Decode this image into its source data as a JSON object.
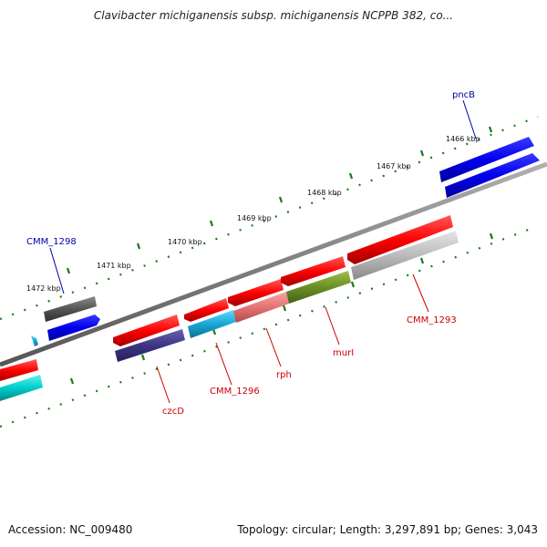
{
  "title": "Clavibacter michiganensis subsp. michiganensis NCPPB 382, co...",
  "footer": {
    "accession": "Accession: NC_009480",
    "topology": "Topology: circular; Length: 3,297,891 bp; Genes: 3,043"
  },
  "ticks": [
    {
      "label": "1466 kbp"
    },
    {
      "label": "1467 kbp"
    },
    {
      "label": "1468 kbp"
    },
    {
      "label": "1469 kbp"
    },
    {
      "label": "1470 kbp"
    },
    {
      "label": "1471 kbp"
    },
    {
      "label": "1472 kbp"
    }
  ],
  "genes": [
    {
      "name": "pncB",
      "strand": "forward",
      "color": "#0000cc",
      "labeled": true
    },
    {
      "name": "CMM_1298",
      "strand": "forward",
      "color": "#0000cc",
      "labeled": true
    },
    {
      "name": "czcD",
      "strand": "reverse",
      "color": "#3d3580",
      "labeled": true
    },
    {
      "name": "CMM_1296",
      "strand": "reverse",
      "color": "#1aa6d6",
      "labeled": true
    },
    {
      "name": "rph",
      "strand": "reverse",
      "color": "#e57373",
      "labeled": true
    },
    {
      "name": "murI",
      "strand": "reverse",
      "color": "#6b8e23",
      "labeled": true
    },
    {
      "name": "CMM_1293",
      "strand": "reverse",
      "color": "#bbbbbb",
      "labeled": true
    }
  ],
  "label_colors": {
    "forward": "#0000aa",
    "reverse": "#cc0000"
  },
  "backbone_color": "#808080",
  "tick_color": "#1a7a1a"
}
